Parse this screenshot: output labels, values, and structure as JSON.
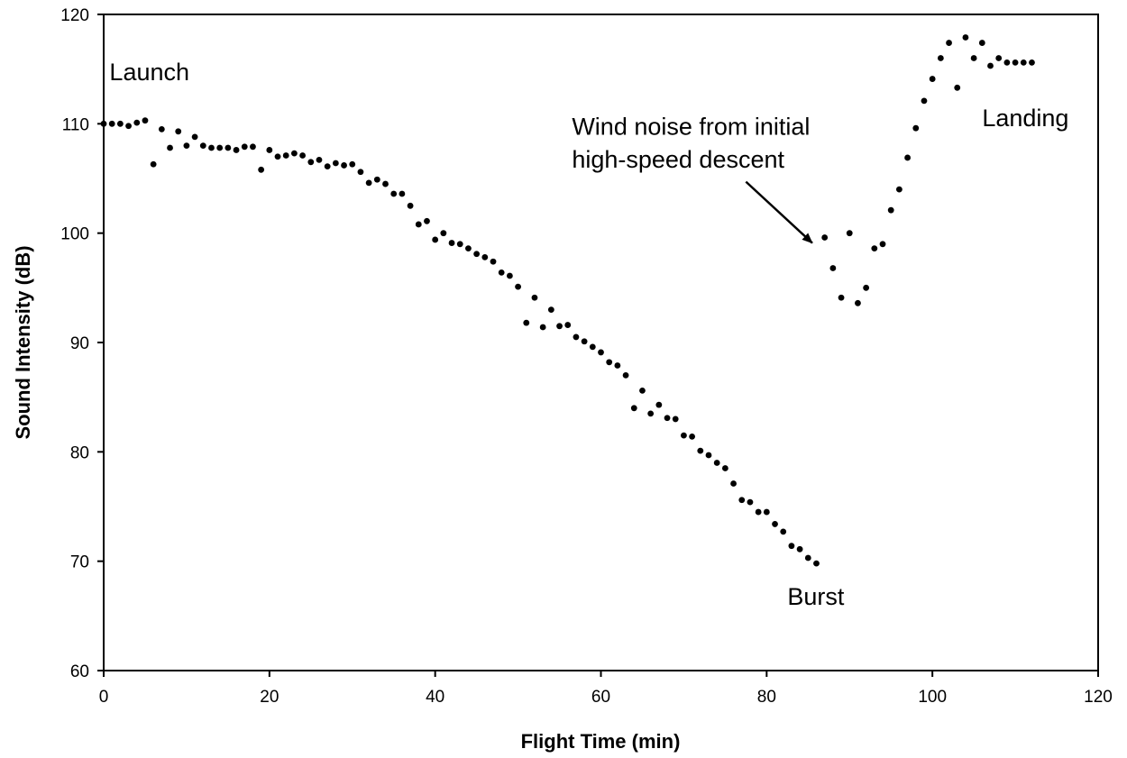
{
  "chart_data": {
    "type": "scatter",
    "title": "",
    "xlabel": "Flight Time (min)",
    "ylabel": "Sound Intensity (dB)",
    "xlim": [
      0,
      120
    ],
    "ylim": [
      60,
      120
    ],
    "x_ticks": [
      "0",
      "20",
      "40",
      "60",
      "80",
      "100",
      "120"
    ],
    "y_ticks": [
      "60",
      "70",
      "80",
      "90",
      "100",
      "110",
      "120"
    ],
    "grid": false,
    "legend": "none",
    "marker_color": "#000000",
    "series": [
      {
        "points": [
          [
            0,
            110.0
          ],
          [
            1,
            110.0
          ],
          [
            2,
            110.0
          ],
          [
            3,
            109.8
          ],
          [
            4,
            110.1
          ],
          [
            5,
            110.3
          ],
          [
            6,
            106.3
          ],
          [
            7,
            109.5
          ],
          [
            8,
            107.8
          ],
          [
            9,
            109.3
          ],
          [
            10,
            108.0
          ],
          [
            11,
            108.8
          ],
          [
            12,
            108.0
          ],
          [
            13,
            107.8
          ],
          [
            14,
            107.8
          ],
          [
            15,
            107.8
          ],
          [
            16,
            107.6
          ],
          [
            17,
            107.9
          ],
          [
            18,
            107.9
          ],
          [
            19,
            105.8
          ],
          [
            20,
            107.6
          ],
          [
            21,
            107.0
          ],
          [
            22,
            107.1
          ],
          [
            23,
            107.3
          ],
          [
            24,
            107.1
          ],
          [
            25,
            106.5
          ],
          [
            26,
            106.7
          ],
          [
            27,
            106.1
          ],
          [
            28,
            106.4
          ],
          [
            29,
            106.2
          ],
          [
            30,
            106.3
          ],
          [
            31,
            105.6
          ],
          [
            32,
            104.6
          ],
          [
            33,
            104.9
          ],
          [
            34,
            104.5
          ],
          [
            35,
            103.6
          ],
          [
            36,
            103.6
          ],
          [
            37,
            102.5
          ],
          [
            38,
            100.8
          ],
          [
            39,
            101.1
          ],
          [
            40,
            99.4
          ],
          [
            41,
            100.0
          ],
          [
            42,
            99.1
          ],
          [
            43,
            99.0
          ],
          [
            44,
            98.6
          ],
          [
            45,
            98.1
          ],
          [
            46,
            97.8
          ],
          [
            47,
            97.4
          ],
          [
            48,
            96.4
          ],
          [
            49,
            96.1
          ],
          [
            50,
            95.1
          ],
          [
            51,
            91.8
          ],
          [
            52,
            94.1
          ],
          [
            53,
            91.4
          ],
          [
            54,
            93.0
          ],
          [
            55,
            91.5
          ],
          [
            56,
            91.6
          ],
          [
            57,
            90.5
          ],
          [
            58,
            90.1
          ],
          [
            59,
            89.6
          ],
          [
            60,
            89.1
          ],
          [
            61,
            88.2
          ],
          [
            62,
            87.9
          ],
          [
            63,
            87.0
          ],
          [
            64,
            84.0
          ],
          [
            65,
            85.6
          ],
          [
            66,
            83.5
          ],
          [
            67,
            84.3
          ],
          [
            68,
            83.1
          ],
          [
            69,
            83.0
          ],
          [
            70,
            81.5
          ],
          [
            71,
            81.4
          ],
          [
            72,
            80.1
          ],
          [
            73,
            79.7
          ],
          [
            74,
            79.0
          ],
          [
            75,
            78.5
          ],
          [
            76,
            77.1
          ],
          [
            77,
            75.6
          ],
          [
            78,
            75.4
          ],
          [
            79,
            74.5
          ],
          [
            80,
            74.5
          ],
          [
            81,
            73.4
          ],
          [
            82,
            72.7
          ],
          [
            83,
            71.4
          ],
          [
            84,
            71.1
          ],
          [
            85,
            70.3
          ],
          [
            86,
            69.8
          ],
          [
            87,
            99.6
          ],
          [
            88,
            96.8
          ],
          [
            89,
            94.1
          ],
          [
            90,
            100.0
          ],
          [
            91,
            93.6
          ],
          [
            92,
            95.0
          ],
          [
            93,
            98.6
          ],
          [
            94,
            99.0
          ],
          [
            95,
            102.1
          ],
          [
            96,
            104.0
          ],
          [
            97,
            106.9
          ],
          [
            98,
            109.6
          ],
          [
            99,
            112.1
          ],
          [
            100,
            114.1
          ],
          [
            101,
            116.0
          ],
          [
            102,
            117.4
          ],
          [
            103,
            113.3
          ],
          [
            104,
            117.9
          ],
          [
            105,
            116.0
          ],
          [
            106,
            117.4
          ],
          [
            107,
            115.3
          ],
          [
            108,
            116.0
          ],
          [
            109,
            115.6
          ],
          [
            110,
            115.6
          ],
          [
            111,
            115.6
          ],
          [
            112,
            115.6
          ]
        ]
      }
    ],
    "annotations": [
      {
        "text": "Launch",
        "x": 0.7,
        "y": 114
      },
      {
        "text": "Wind noise from initial",
        "x": 56.5,
        "y": 109
      },
      {
        "text": "high-speed descent",
        "x": 56.5,
        "y": 106
      },
      {
        "text": "Landing",
        "x": 106,
        "y": 109.8
      },
      {
        "text": "Burst",
        "x": 82.5,
        "y": 66
      }
    ],
    "arrow": {
      "from": [
        77.5,
        104.7
      ],
      "to": [
        85.5,
        99.1
      ]
    }
  }
}
